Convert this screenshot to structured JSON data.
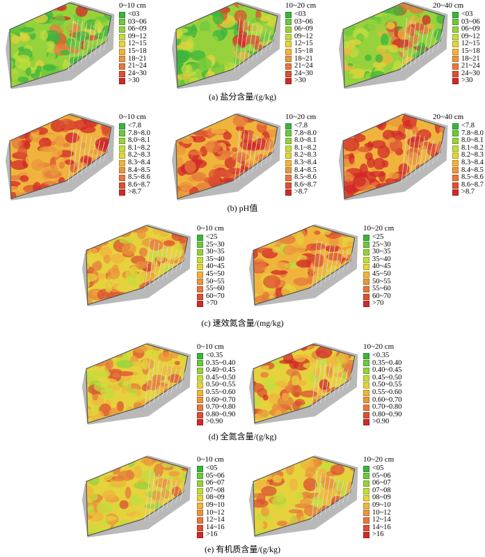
{
  "figures": [
    {
      "caption": "(a) 盐分含量/(g/kg)",
      "depths": [
        "0~10 cm",
        "10~20 cm",
        "20~40 cm"
      ],
      "classes": [
        "<03",
        "03~06",
        "06~09",
        "09~12",
        "12~15",
        "15~18",
        "18~21",
        "21~24",
        "24~30",
        ">30"
      ]
    },
    {
      "caption": "(b) pH值",
      "depths": [
        "0~10 cm",
        "10~20 cm",
        "20~40 cm"
      ],
      "classes": [
        "<7.8",
        "7.8~8.0",
        "8.0~8.1",
        "8.1~8.2",
        "8.2~8.3",
        "8.3~8.4",
        "8.4~8.5",
        "8.5~8.6",
        "8.6~8.7",
        ">8.7"
      ]
    },
    {
      "caption": "(c) 速效氮含量/(mg/kg)",
      "depths": [
        "0~10 cm",
        "10~20 cm"
      ],
      "classes": [
        "<25",
        "25~30",
        "30~35",
        "35~40",
        "40~45",
        "45~50",
        "50~55",
        "55~60",
        "60~70",
        ">70"
      ]
    },
    {
      "caption": "(d) 全氮含量/(g/kg)",
      "depths": [
        "0~10 cm",
        "10~20 cm"
      ],
      "classes": [
        "<0.35",
        "0.35~0.40",
        "0.40~0.45",
        "0.45~0.50",
        "0.50~0.55",
        "0.55~0.60",
        "0.60~0.70",
        "0.70~0.80",
        "0.80~0.90",
        ">0.90"
      ]
    },
    {
      "caption": "(e) 有机质含量/(g/kg)",
      "depths": [
        "0~10 cm",
        "10~20 cm"
      ],
      "classes": [
        "<05",
        "05~06",
        "06~07",
        "07~08",
        "08~09",
        "09~10",
        "10~12",
        "12~14",
        "14~16",
        ">16"
      ]
    }
  ],
  "legend_colors": [
    "#3cb43c",
    "#6ec83c",
    "#96d23c",
    "#c3dc3c",
    "#e6d23c",
    "#f0b43c",
    "#eb963c",
    "#e6783c",
    "#dc5032",
    "#d22828"
  ]
}
